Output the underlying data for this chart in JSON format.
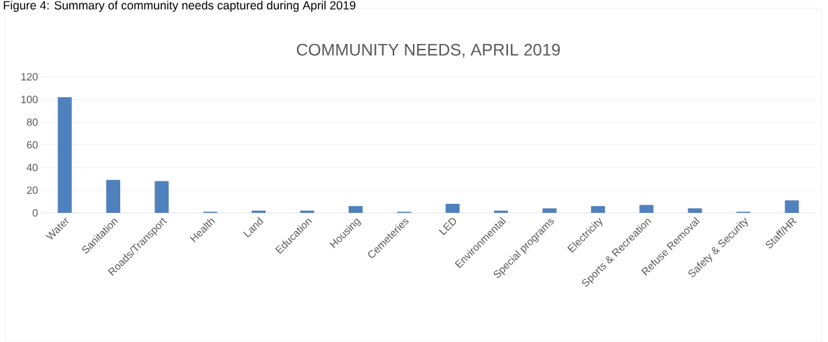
{
  "chart_data": {
    "type": "bar",
    "title": "COMMUNITY NEEDS, APRIL 2019",
    "annotations": [
      "Figure 4: Summary of community needs captured during April 2019"
    ],
    "categories": [
      "Water",
      "Sanitation",
      "Roads/Transport",
      "Health",
      "Land",
      "Education",
      "Housing",
      "Cemeteries",
      "LED",
      "Environmental",
      "Special programs",
      "Electricity",
      "Sports & Recreation",
      "Refuse Removal",
      "Safety & Security",
      "Staff/HR"
    ],
    "values": [
      102,
      29,
      28,
      1,
      2,
      2,
      6,
      1,
      8,
      2,
      4,
      6,
      7,
      4,
      1,
      11
    ],
    "color": "#4f81bd",
    "ylim": [
      0,
      120
    ],
    "yticks": [
      0,
      20,
      40,
      60,
      80,
      100,
      120
    ],
    "grid": "y"
  }
}
